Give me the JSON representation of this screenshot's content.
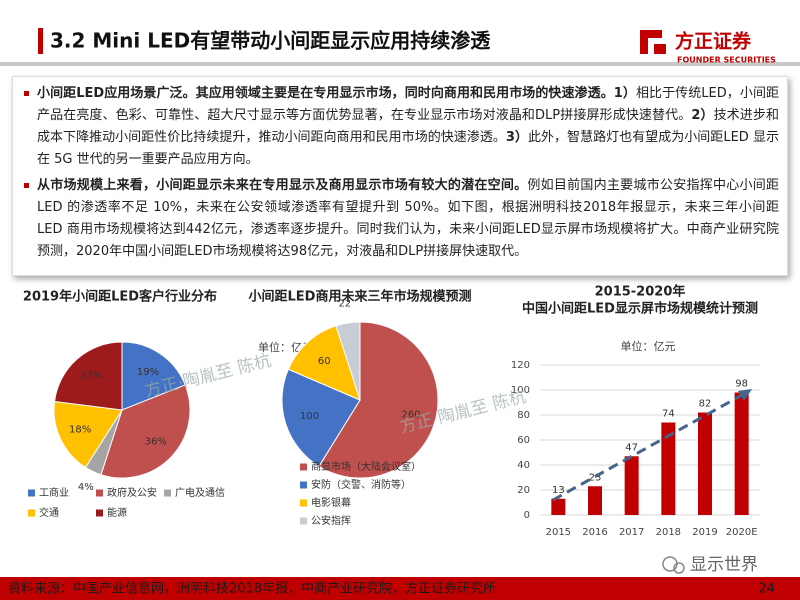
{
  "header": {
    "title": "3.2 Mini LED有望带动小间距显示应用持续渗透",
    "logo": "方正证券",
    "logo_sub": "FOUNDER SECURITIES"
  },
  "bullets": [
    [
      {
        "text": "小间距LED应用场景广泛。其应用领域主要是在专用显示市场，同时向商用和民用市场的快速渗透。",
        "bold": true
      },
      {
        "text": "1）",
        "bold": true
      },
      {
        "text": "相比于传统LED，小间距产品在亮度、色彩、可靠性、超大尺寸显示等方面优势显著，在专业显示市场对液晶和DLP拼接屏形成快速替代。",
        "bold": false
      },
      {
        "text": "2）",
        "bold": true
      },
      {
        "text": "技术进步和成本下降推动小间距性价比持续提升，推动小间距向商用和民用市场的快速渗透。",
        "bold": false
      },
      {
        "text": "3）",
        "bold": true
      },
      {
        "text": "此外，智慧路灯也有望成为小间距LED 显示在 5G 世代的另一重要产品应用方向。",
        "bold": false
      }
    ],
    [
      {
        "text": "从市场规模上来看，小间距显示未来在专用显示及商用显示市场有较大的潜在空间。",
        "bold": true
      },
      {
        "text": "例如目前国内主要城市公安指挥中心小间距LED 的渗透率不足 10%，未来在公安领域渗透率有望提升到 50%。如下图，根据洲明科技2018年报显示，未来三年小间距 LED 商用市场规模将达到442亿元，渗透率逐步提升。同时我们认为，未来小间距LED显示屏市场规模将扩大。中商产业研究院预测，2020年中国小间距LED市场规模将达98亿元，对液晶和DLP拼接屏快速取代。",
        "bold": false
      }
    ]
  ],
  "chart_data": [
    {
      "type": "pie",
      "title": "2019年小间距LED客户行业分布",
      "categories": [
        "工商业",
        "政府及公安",
        "广电及通信",
        "交通",
        "能源"
      ],
      "values": [
        19,
        36,
        4,
        18,
        23
      ],
      "value_labels": [
        "19%",
        "36%",
        "4%",
        "18%",
        "23%"
      ],
      "colors": [
        "#4472c4",
        "#c0504d",
        "#a5a5a5",
        "#ffc000",
        "#9e1b1b"
      ],
      "legend": "bottom"
    },
    {
      "type": "pie",
      "title": "小间距LED商用未来三年市场规模预测",
      "unit": "单位：亿元",
      "categories": [
        "商显市场（大陆会议室）",
        "安防（交警、消防等）",
        "电影银幕",
        "公安指挥"
      ],
      "values": [
        260,
        100,
        60,
        22
      ],
      "colors": [
        "#c0504d",
        "#4472c4",
        "#ffc000",
        "#c8ccd4"
      ],
      "legend": "bottom"
    },
    {
      "type": "bar",
      "title": [
        "2015-2020年",
        "中国小间距LED显示屏市场规模统计预测"
      ],
      "unit": "单位：亿元",
      "categories": [
        "2015",
        "2016",
        "2017",
        "2018",
        "2019",
        "2020E"
      ],
      "values": [
        13,
        23,
        47,
        74,
        82,
        98
      ],
      "color": "#c00000",
      "ylim": [
        0,
        120
      ],
      "yticks": [
        0,
        20,
        40,
        60,
        80,
        100,
        120
      ],
      "grid": true
    }
  ],
  "watermarks": [
    "方正·陶胤至 陈杭",
    "方正·陶胤至 陈杭"
  ],
  "footer": {
    "source": "资料来源：中国产业信息网，洲明科技2018年报，中商产业研究院，方正证券研究所",
    "page": 24,
    "brand": "显示世界"
  }
}
